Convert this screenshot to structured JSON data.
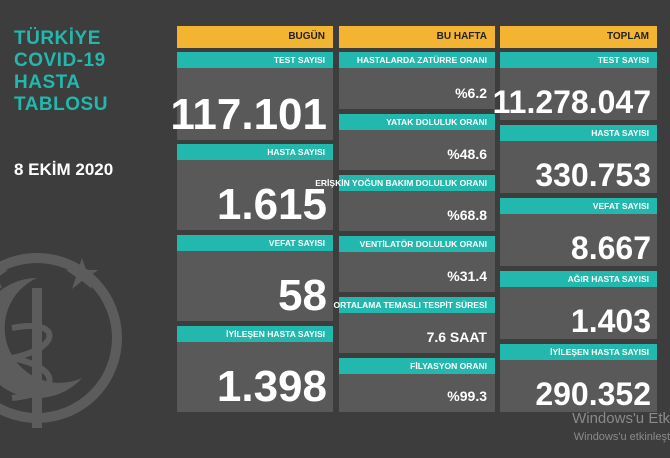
{
  "title": [
    "TÜRKİYE",
    "COVID-19",
    "HASTA",
    "TABLOSU"
  ],
  "date": "8 EKİM 2020",
  "columns": {
    "today": {
      "header": "BUGÜN",
      "cards": [
        {
          "label": "TEST SAYISI",
          "value": "117.101"
        },
        {
          "label": "HASTA SAYISI",
          "value": "1.615"
        },
        {
          "label": "VEFAT SAYISI",
          "value": "58"
        },
        {
          "label": "İYİLEŞEN HASTA SAYISI",
          "value": "1.398"
        }
      ]
    },
    "week": {
      "header": "BU HAFTA",
      "cards": [
        {
          "label": "HASTALARDA ZATÜRRE ORANI",
          "value": "%6.2"
        },
        {
          "label": "YATAK DOLULUK ORANI",
          "value": "%48.6"
        },
        {
          "label": "ERİŞKİN YOĞUN BAKIM DOLULUK ORANI",
          "value": "%68.8"
        },
        {
          "label": "VENTİLATÖR DOLULUK ORANI",
          "value": "%31.4"
        },
        {
          "label": "ORTALAMA TEMASLI TESPİT SÜRESİ",
          "value": "7.6 SAAT"
        },
        {
          "label": "FİLYASYON ORANI",
          "value": "%99.3"
        }
      ]
    },
    "total": {
      "header": "TOPLAM",
      "cards": [
        {
          "label": "TEST SAYISI",
          "value": "11.278.047"
        },
        {
          "label": "HASTA SAYISI",
          "value": "330.753"
        },
        {
          "label": "VEFAT SAYISI",
          "value": "8.667"
        },
        {
          "label": "AĞIR HASTA SAYISI",
          "value": "1.403"
        },
        {
          "label": "İYİLEŞEN HASTA SAYISI",
          "value": "290.352"
        }
      ]
    }
  },
  "watermark": [
    "Windows'u Etk",
    "Windows'u etkinleşt"
  ],
  "colors": {
    "background": "#3d3d3d",
    "card": "#595959",
    "header": "#f3b531",
    "accent": "#22b8ad"
  }
}
